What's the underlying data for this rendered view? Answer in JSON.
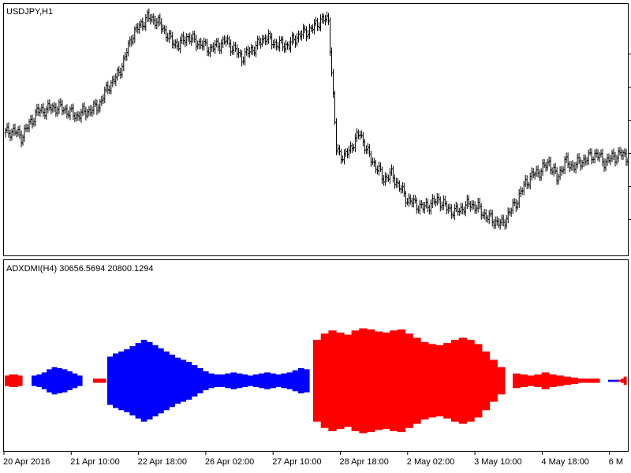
{
  "price_pane": {
    "symbol_label": "USDJPY,H1"
  },
  "indicator_pane": {
    "indicator_label": "ADXDMI(H4) 30656.5694 20800.1294"
  },
  "colors": {
    "price_bars": "#000000",
    "dmi_plus": "#0000ff",
    "dmi_minus": "#ff0000",
    "frame": "#000000",
    "background": "#ffffff"
  },
  "chart_data": [
    {
      "type": "bar",
      "name": "USDJPY,H1 price bars",
      "x_labels": [
        "20 Apr 2016",
        "21 Apr 10:00",
        "22 Apr 18:00",
        "26 Apr 02:00",
        "27 Apr 10:00",
        "28 Apr 18:00",
        "2 May 02:00",
        "3 May 10:00",
        "4 May 18:00",
        "6 M"
      ],
      "close_profile": [
        0.44,
        0.45,
        0.42,
        0.48,
        0.54,
        0.55,
        0.56,
        0.56,
        0.54,
        0.52,
        0.54,
        0.55,
        0.58,
        0.66,
        0.7,
        0.78,
        0.9,
        0.95,
        0.99,
        0.98,
        0.94,
        0.88,
        0.86,
        0.9,
        0.88,
        0.86,
        0.84,
        0.86,
        0.88,
        0.84,
        0.8,
        0.83,
        0.86,
        0.9,
        0.87,
        0.86,
        0.86,
        0.9,
        0.92,
        0.94,
        0.98,
        0.98,
        0.36,
        0.32,
        0.38,
        0.44,
        0.34,
        0.28,
        0.22,
        0.24,
        0.18,
        0.12,
        0.1,
        0.08,
        0.1,
        0.12,
        0.08,
        0.06,
        0.08,
        0.1,
        0.08,
        0.04,
        0.02,
        0.0,
        0.06,
        0.12,
        0.2,
        0.24,
        0.26,
        0.3,
        0.22,
        0.3,
        0.28,
        0.3,
        0.32,
        0.34,
        0.3,
        0.32,
        0.34,
        0.32
      ],
      "grid": false
    },
    {
      "type": "area",
      "name": "ADXDMI(H4) histogram",
      "values": [
        "30656.5694",
        "20800.1294"
      ],
      "series": [
        {
          "color": "blue",
          "segments": [
            {
              "profile": [
                0.1,
                0.12,
                0.16,
                0.22,
                0.26,
                0.24,
                0.22,
                0.18,
                0.14,
                0.1
              ]
            },
            {
              "profile": [
                0.46,
                0.52,
                0.56,
                0.6,
                0.66,
                0.72,
                0.78,
                0.74,
                0.68,
                0.62,
                0.56,
                0.5,
                0.44,
                0.4,
                0.36,
                0.3,
                0.24,
                0.18,
                0.14,
                0.12,
                0.12,
                0.14,
                0.16,
                0.14,
                0.12,
                0.1,
                0.12,
                0.14,
                0.16,
                0.14,
                0.12,
                0.14,
                0.16,
                0.2,
                0.24,
                0.22
              ]
            },
            {
              "profile": [
                0.02,
                0.02
              ]
            }
          ]
        },
        {
          "color": "red",
          "segments": [
            {
              "profile": [
                0.1,
                0.12,
                0.12,
                0.1
              ]
            },
            {
              "profile": [
                0.04,
                0.04
              ]
            },
            {
              "profile": [
                0.78,
                0.9,
                0.96,
                0.92,
                0.88,
                0.96,
                1.0,
                0.98,
                0.94,
                0.92,
                0.96,
                0.98,
                0.9,
                0.82,
                0.74,
                0.7,
                0.68,
                0.72,
                0.78,
                0.82,
                0.78,
                0.7,
                0.56,
                0.4,
                0.26
              ]
            },
            {
              "profile": [
                0.14,
                0.12,
                0.1,
                0.12,
                0.16,
                0.12,
                0.1,
                0.08,
                0.06,
                0.04,
                0.04,
                0.04
              ]
            },
            {
              "profile": [
                0.02,
                0.04,
                0.08
              ]
            }
          ]
        }
      ],
      "grid": false
    }
  ]
}
